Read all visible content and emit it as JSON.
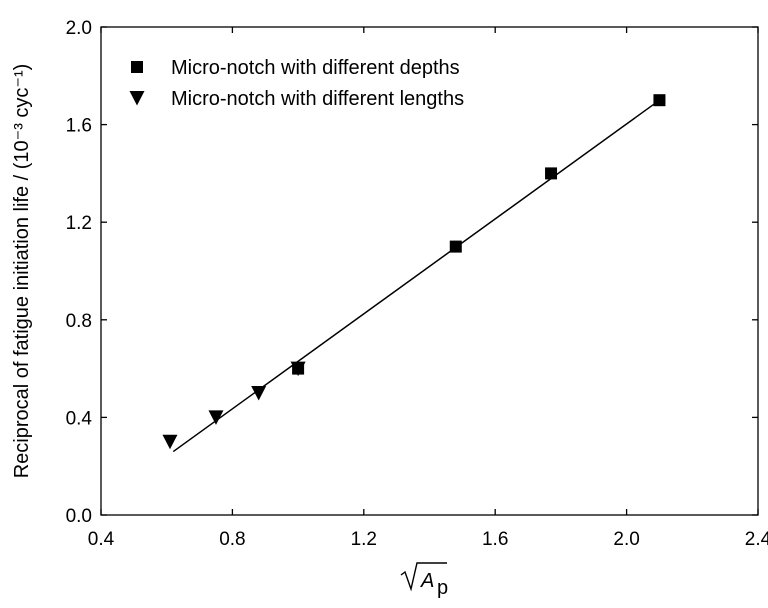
{
  "chart_data": {
    "type": "scatter",
    "title": "",
    "xlabel": "√A_p",
    "ylabel": "Reciprocal of fatigue initiation life / (10⁻³ cyc⁻¹)",
    "xlim": [
      0.4,
      2.4
    ],
    "ylim": [
      0.0,
      2.0
    ],
    "x_ticks": [
      0.4,
      0.8,
      1.2,
      1.6,
      2.0,
      2.4
    ],
    "y_ticks": [
      0.0,
      0.4,
      0.8,
      1.2,
      1.6,
      2.0
    ],
    "x_tick_labels": [
      "0.4",
      "0.8",
      "1.2",
      "1.6",
      "2.0",
      "2.4"
    ],
    "y_tick_labels": [
      "0.0",
      "0.4",
      "0.8",
      "1.2",
      "1.6",
      "2.0"
    ],
    "grid": false,
    "legend_position": "top-left",
    "series": [
      {
        "name": "Micro-notch with different depths",
        "marker": "square",
        "points": [
          [
            1.0,
            0.6
          ],
          [
            1.48,
            1.1
          ],
          [
            1.77,
            1.4
          ],
          [
            2.1,
            1.7
          ]
        ]
      },
      {
        "name": "Micro-notch with different lengths",
        "marker": "triangle-down",
        "points": [
          [
            0.61,
            0.3
          ],
          [
            0.75,
            0.4
          ],
          [
            0.88,
            0.5
          ],
          [
            1.0,
            0.6
          ]
        ]
      }
    ],
    "fit_line": {
      "from": [
        0.62,
        0.26
      ],
      "to": [
        2.1,
        1.7
      ]
    }
  }
}
